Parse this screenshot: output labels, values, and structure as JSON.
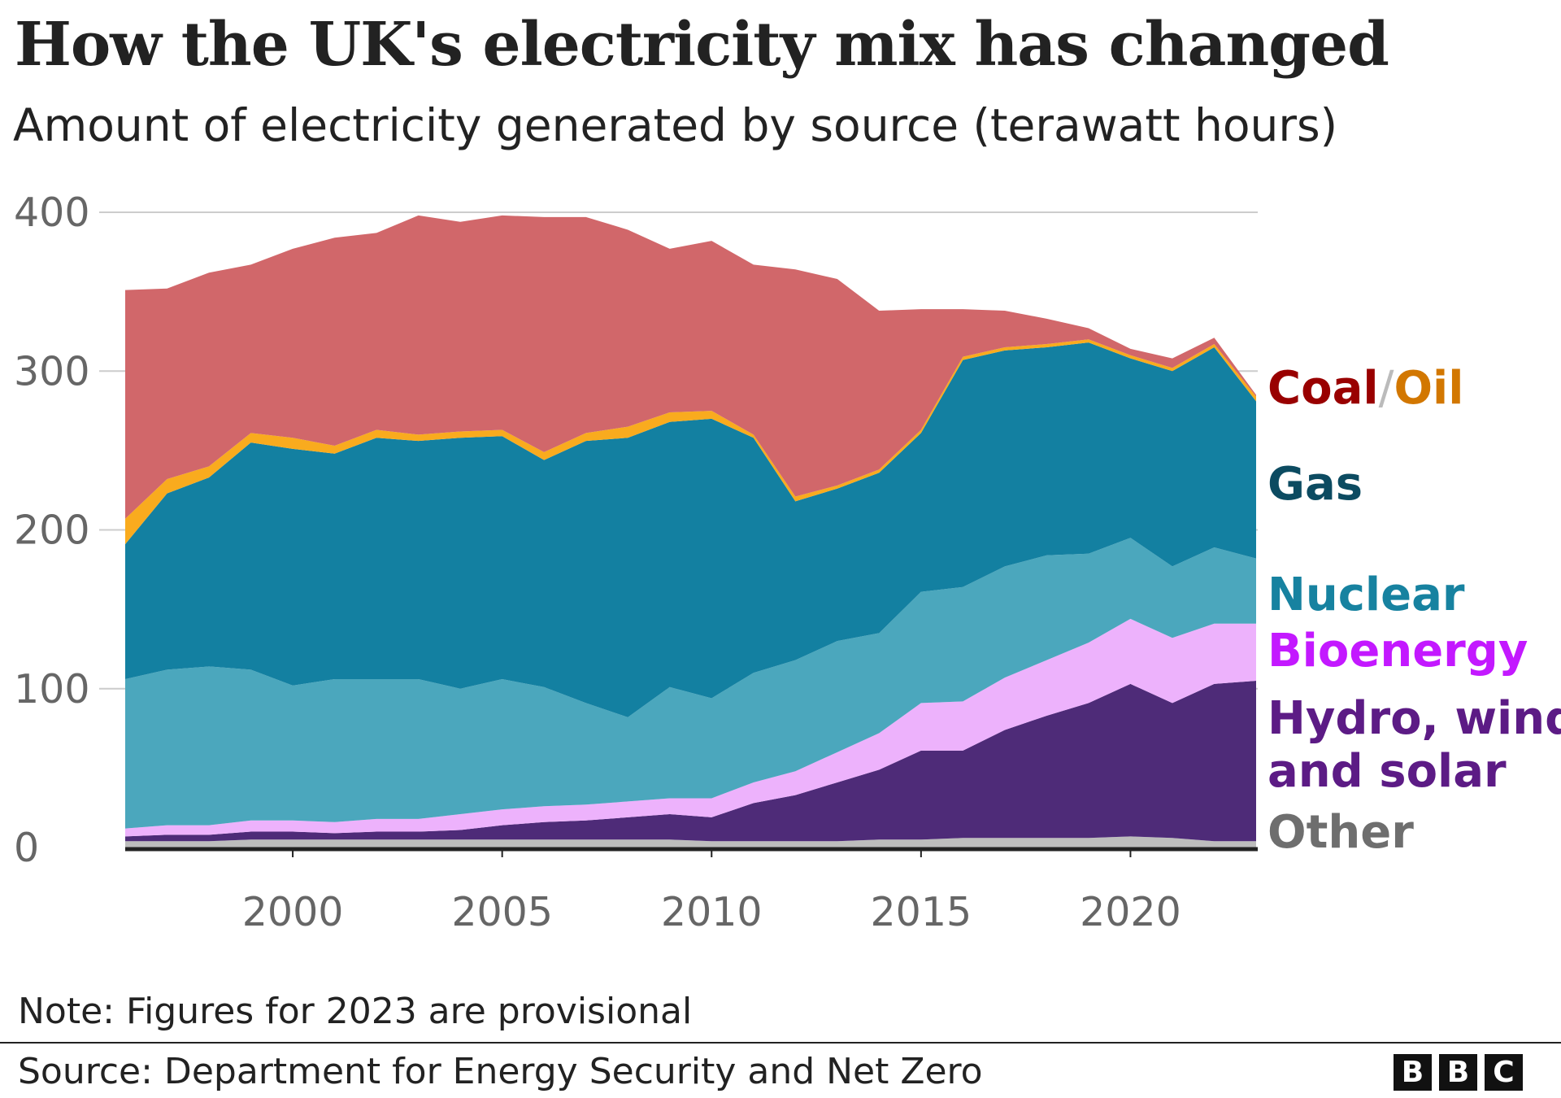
{
  "chart_data": {
    "type": "area",
    "stacked": true,
    "title": "How the UK's electricity mix has changed",
    "subtitle": "Amount of electricity generated by source (terawatt hours)",
    "xlabel": "",
    "ylabel": "",
    "ylim": [
      0,
      400
    ],
    "yticks": [
      0,
      100,
      200,
      300,
      400
    ],
    "xticks": [
      2000,
      2005,
      2010,
      2015,
      2020
    ],
    "grid": true,
    "legend": "right (inline labels)",
    "x": [
      1996,
      1997,
      1998,
      1999,
      2000,
      2001,
      2002,
      2003,
      2004,
      2005,
      2006,
      2007,
      2008,
      2009,
      2010,
      2011,
      2012,
      2013,
      2014,
      2015,
      2016,
      2017,
      2018,
      2019,
      2020,
      2021,
      2022,
      2023
    ],
    "series": [
      {
        "name": "Other",
        "color": "#bdbdbd",
        "label_color": "#6e6e6e",
        "values": [
          4,
          4,
          4,
          5,
          5,
          5,
          5,
          5,
          5,
          5,
          5,
          5,
          5,
          5,
          4,
          4,
          4,
          4,
          5,
          5,
          6,
          6,
          6,
          6,
          7,
          6,
          4,
          4
        ]
      },
      {
        "name": "Hydro, wind and solar",
        "color": "#4e2b78",
        "label_color": "#5c1b85",
        "values": [
          3,
          4,
          4,
          5,
          5,
          4,
          5,
          5,
          6,
          9,
          11,
          12,
          14,
          16,
          15,
          24,
          29,
          37,
          44,
          56,
          55,
          68,
          77,
          85,
          96,
          85,
          99,
          101
        ]
      },
      {
        "name": "Bioenergy",
        "color": "#edb2fc",
        "label_color": "#c319ff",
        "values": [
          5,
          6,
          6,
          7,
          7,
          7,
          8,
          8,
          10,
          10,
          10,
          10,
          10,
          10,
          12,
          13,
          15,
          19,
          23,
          30,
          31,
          33,
          35,
          38,
          41,
          41,
          38,
          36
        ]
      },
      {
        "name": "Nuclear",
        "color": "#4ba7bd",
        "label_color": "#1782a0",
        "values": [
          94,
          98,
          100,
          95,
          85,
          90,
          88,
          88,
          79,
          82,
          75,
          64,
          53,
          70,
          63,
          69,
          70,
          70,
          63,
          70,
          72,
          70,
          66,
          56,
          51,
          45,
          48,
          41
        ]
      },
      {
        "name": "Gas",
        "color": "#1380a1",
        "label_color": "#0c4b61",
        "values": [
          85,
          111,
          119,
          143,
          149,
          142,
          152,
          150,
          158,
          153,
          143,
          165,
          176,
          167,
          176,
          148,
          100,
          96,
          101,
          100,
          143,
          136,
          131,
          133,
          113,
          123,
          126,
          99
        ]
      },
      {
        "name": "Oil",
        "color": "#f9ab1e",
        "label_color": "#d27700",
        "values": [
          16,
          9,
          7,
          6,
          7,
          5,
          5,
          4,
          4,
          4,
          5,
          5,
          7,
          6,
          5,
          2,
          3,
          2,
          2,
          2,
          2,
          2,
          2,
          2,
          2,
          2,
          2,
          3
        ]
      },
      {
        "name": "Coal",
        "color": "#d1676a",
        "label_color": "#990000",
        "values": [
          144,
          120,
          122,
          106,
          119,
          131,
          124,
          138,
          132,
          135,
          148,
          136,
          124,
          103,
          107,
          107,
          143,
          130,
          100,
          76,
          30,
          23,
          16,
          7,
          4,
          6,
          4,
          1
        ]
      }
    ]
  },
  "labels": {
    "coal": "Coal",
    "slash": "/",
    "oil": "Oil",
    "gas": "Gas",
    "nuclear": "Nuclear",
    "bioenergy": "Bioenergy",
    "hydro_line1": "Hydro, wind",
    "hydro_line2": "and solar",
    "other": "Other"
  },
  "note": "Note: Figures for 2023 are provisional",
  "source": "Source: Department for Energy Security and Net Zero",
  "logo": [
    "B",
    "B",
    "C"
  ]
}
